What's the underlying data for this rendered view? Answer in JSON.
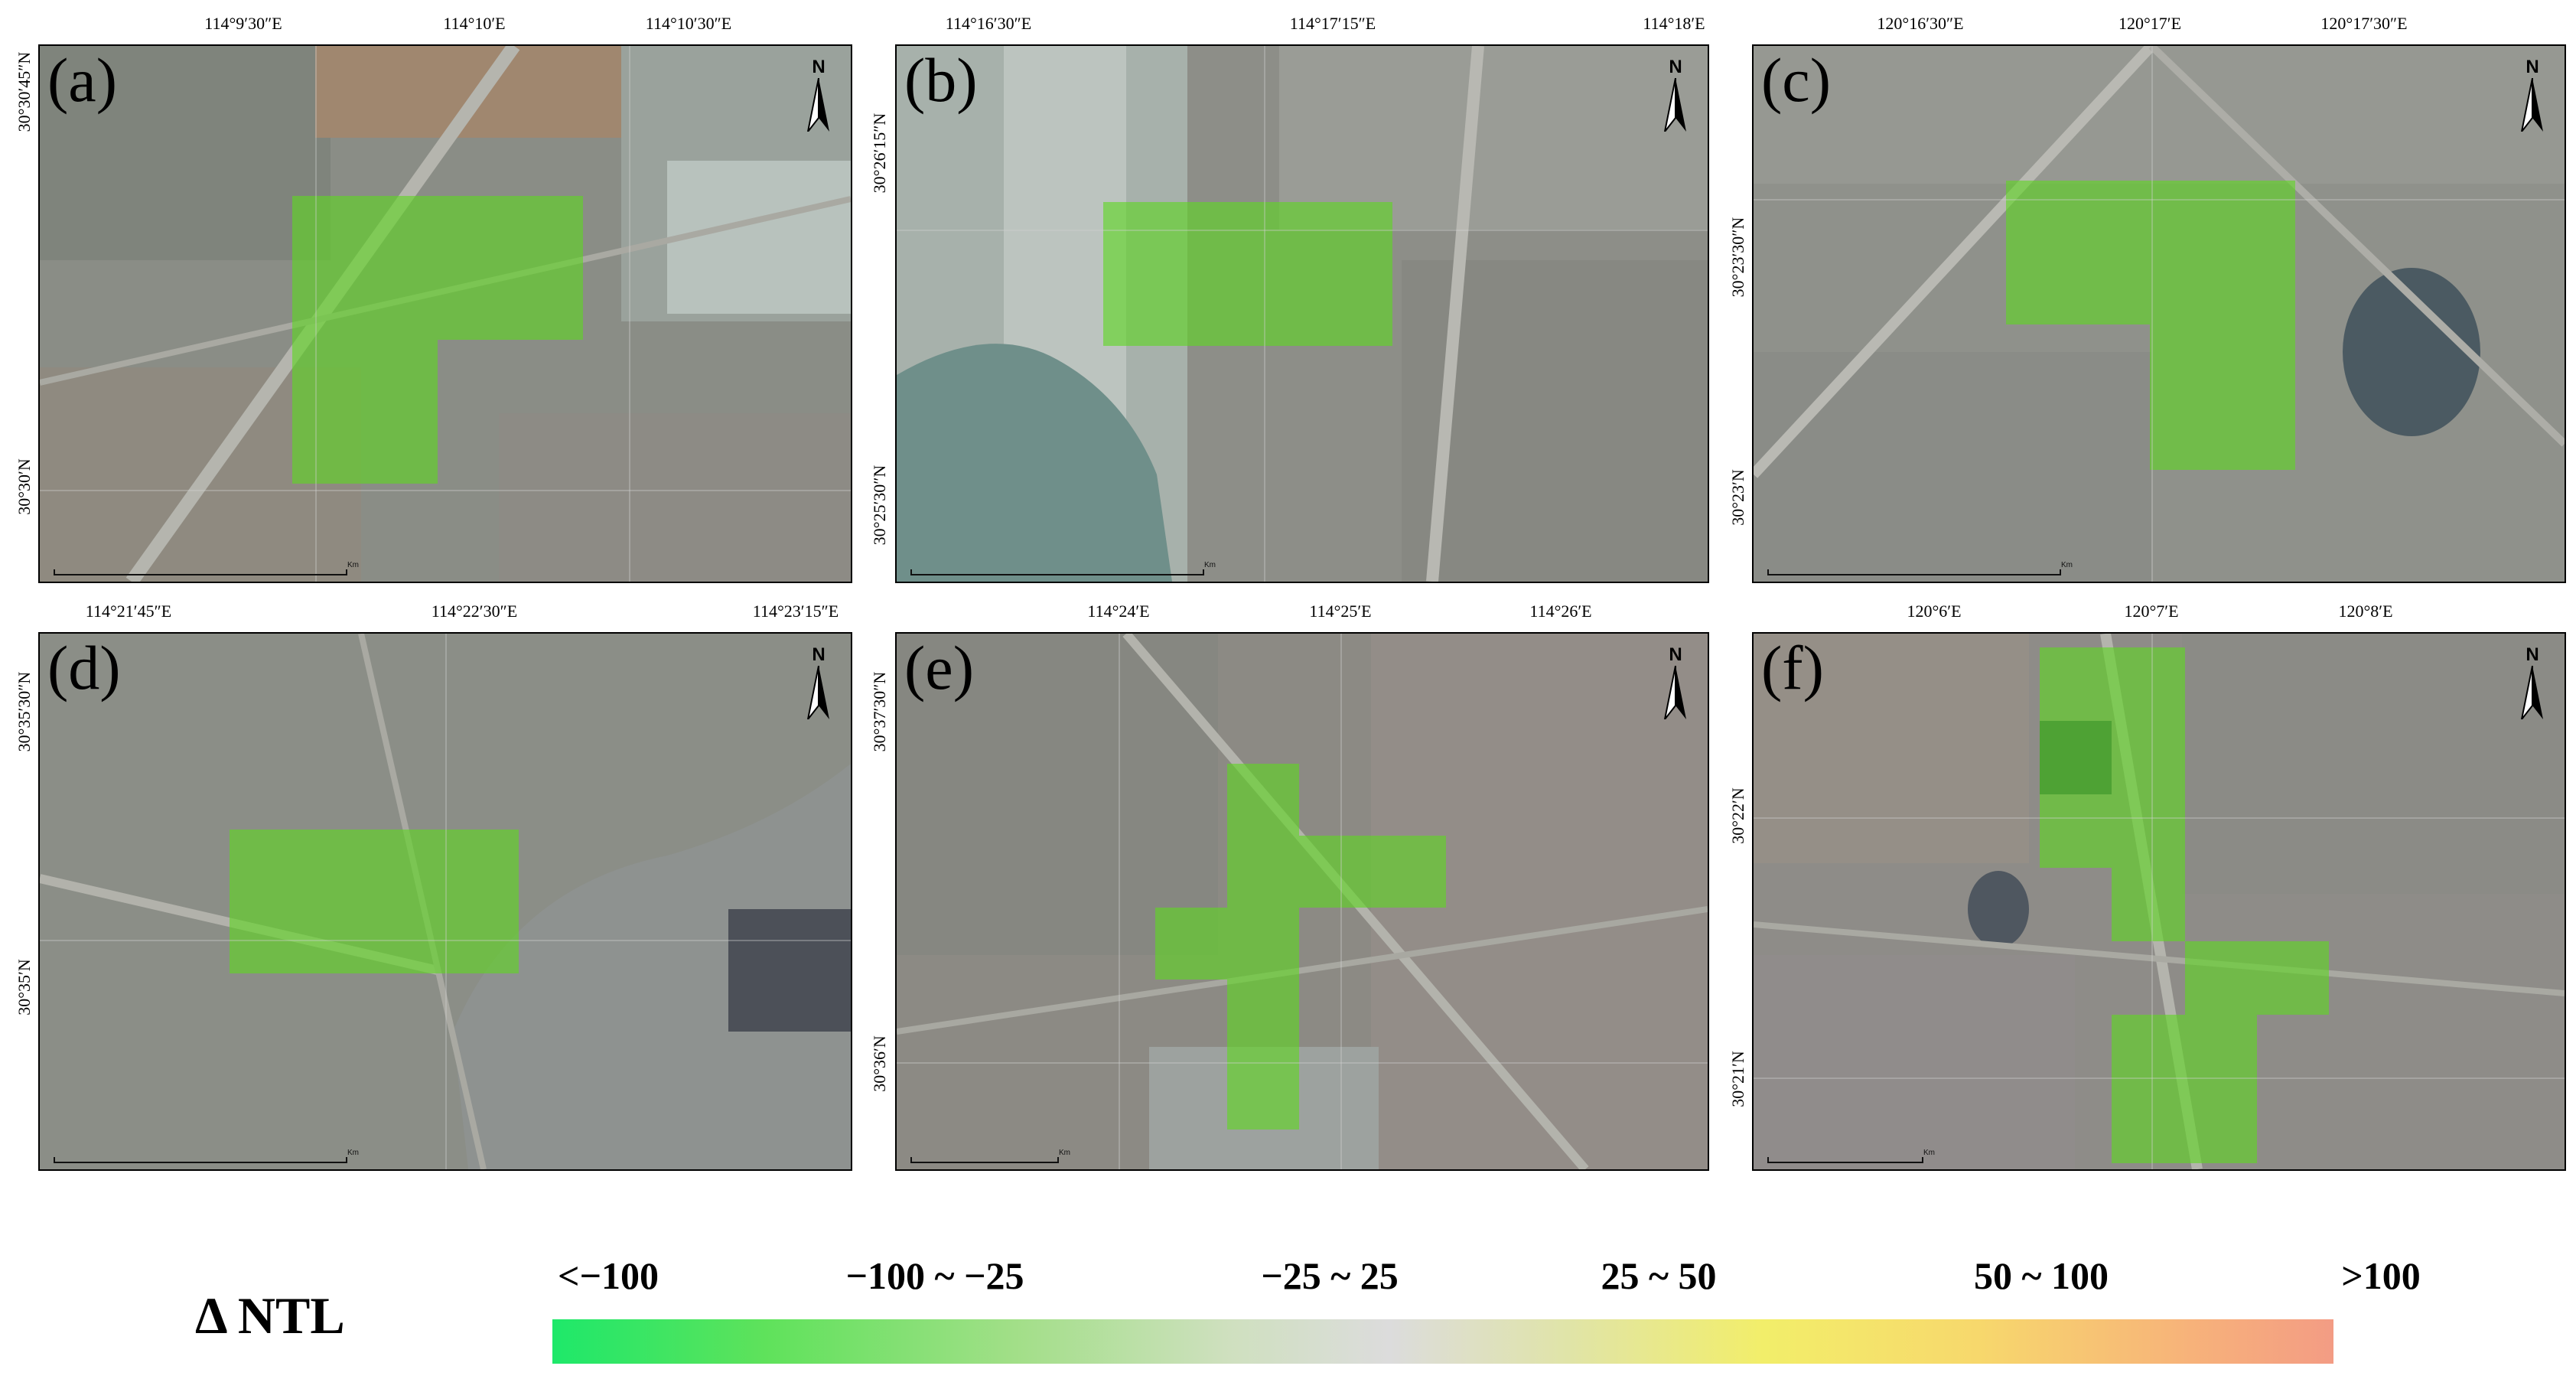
{
  "figure": {
    "legend": {
      "title": "Δ NTL",
      "classes": [
        "<−100",
        "−100 ~ −25",
        "−25 ~ 25",
        "25 ~ 50",
        "50 ~ 100",
        ">100"
      ],
      "color_stops": [
        "#1ee86a",
        "#a2df88",
        "#dcdcdc",
        "#f2ee6a",
        "#f7b27a",
        "#f39c84"
      ]
    },
    "north_arrow": "N",
    "panels": [
      {
        "label": "(a)",
        "top_ticks": [
          "114°9′30″E",
          "114°10′E",
          "114°10′30″E"
        ],
        "left_ticks": [
          "30°30′45″N",
          "30°30′N"
        ],
        "scale_label": "Km"
      },
      {
        "label": "(b)",
        "top_ticks": [
          "114°16′30″E",
          "114°17′15″E",
          "114°18′E"
        ],
        "left_ticks": [
          "30°26′15″N",
          "30°25′30″N"
        ],
        "scale_label": "Km"
      },
      {
        "label": "(c)",
        "top_ticks": [
          "120°16′30″E",
          "120°17′E",
          "120°17′30″E"
        ],
        "left_ticks": [
          "30°23′30″N",
          "30°23′N"
        ],
        "scale_label": "Km"
      },
      {
        "label": "(d)",
        "top_ticks": [
          "114°21′45″E",
          "114°22′30″E",
          "114°23′15″E"
        ],
        "left_ticks": [
          "30°35′30″N",
          "30°35′N"
        ],
        "scale_label": "Km"
      },
      {
        "label": "(e)",
        "top_ticks": [
          "114°24′E",
          "114°25′E",
          "114°26′E"
        ],
        "left_ticks": [
          "30°37′30″N",
          "30°36′N"
        ],
        "scale_label": "Km"
      },
      {
        "label": "(f)",
        "top_ticks": [
          "120°6′E",
          "120°7′E",
          "120°8′E"
        ],
        "left_ticks": [
          "30°22′N",
          "30°21′N"
        ],
        "scale_label": "Km"
      }
    ]
  }
}
